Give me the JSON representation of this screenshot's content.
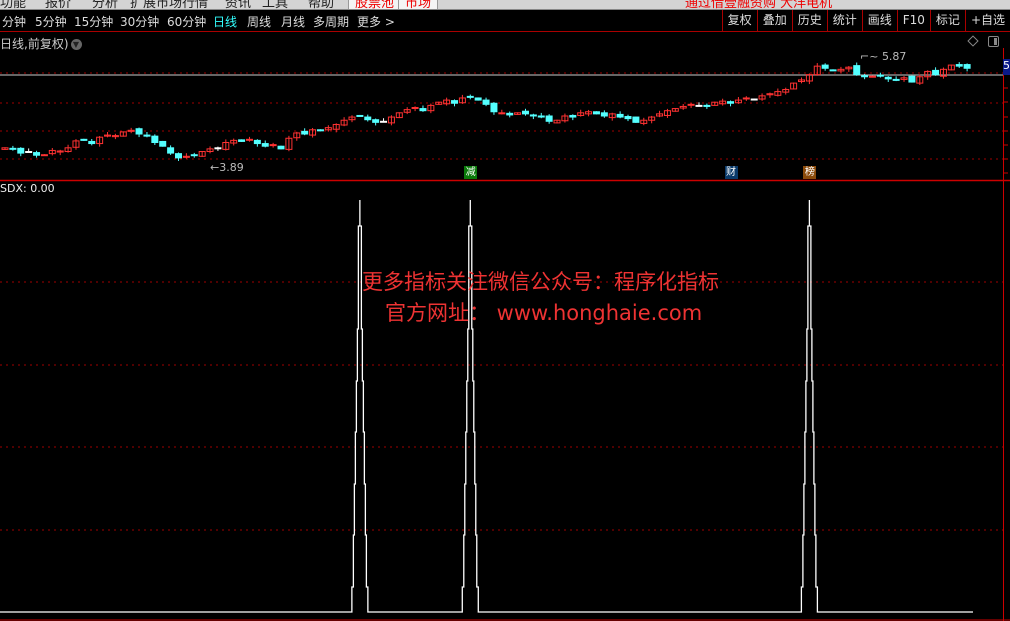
{
  "menu": {
    "items": [
      "功能",
      "报价",
      "分析",
      "扩展市场行情",
      "资讯",
      "工具",
      "帮助"
    ],
    "red_items": [
      "股票池",
      "市场"
    ],
    "ticker": "通过借壹融资购 大洋电机"
  },
  "periods": {
    "items": [
      "分钟",
      "5分钟",
      "15分钟",
      "30分钟",
      "60分钟",
      "日线",
      "周线",
      "月线",
      "多周期",
      "更多 >"
    ],
    "active": "日线"
  },
  "toolbar": {
    "items": [
      "复权",
      "叠加",
      "历史",
      "统计",
      "画线",
      "F10",
      "标记",
      "+自选"
    ]
  },
  "chart_header": {
    "label": "日线,前复权)",
    "dropdown_icon": "chevron-down-icon"
  },
  "icons": {
    "diamond": "diamond-icon",
    "window": "window-toggle-icon"
  },
  "colors": {
    "up": "#ff3232",
    "down": "#54ffff",
    "doji": "#ffffff",
    "grid": "#a00000",
    "indicator": "#ffffff",
    "watermark": "#ee3333"
  },
  "chart_data": {
    "type": "candlestick",
    "price_high_label": "5.87",
    "price_low_label": "3.89",
    "axis_label": "5",
    "closes": [
      4.12,
      4.1,
      4.02,
      4.05,
      3.98,
      3.99,
      4.07,
      4.06,
      4.12,
      4.25,
      4.26,
      4.2,
      4.32,
      4.36,
      4.35,
      4.42,
      4.45,
      4.38,
      4.34,
      4.22,
      4.15,
      4.02,
      3.93,
      3.96,
      3.98,
      4.05,
      4.1,
      4.12,
      4.22,
      4.26,
      4.24,
      4.28,
      4.2,
      4.15,
      4.18,
      4.1,
      4.3,
      4.4,
      4.38,
      4.46,
      4.44,
      4.5,
      4.56,
      4.64,
      4.7,
      4.72,
      4.65,
      4.6,
      4.62,
      4.7,
      4.78,
      4.84,
      4.88,
      4.82,
      4.92,
      4.98,
      5.02,
      4.96,
      5.06,
      5.08,
      5.02,
      4.94,
      4.8,
      4.78,
      4.74,
      4.78,
      4.76,
      4.72,
      4.7,
      4.62,
      4.64,
      4.72,
      4.7,
      4.78,
      4.8,
      4.76,
      4.72,
      4.76,
      4.7,
      4.67,
      4.6,
      4.64,
      4.7,
      4.76,
      4.82,
      4.86,
      4.9,
      4.94,
      4.92,
      4.9,
      4.98,
      5.0,
      4.96,
      5.02,
      5.06,
      5.04,
      5.1,
      5.14,
      5.18,
      5.22,
      5.34,
      5.4,
      5.5,
      5.66,
      5.62,
      5.58,
      5.6,
      5.64,
      5.5,
      5.46,
      5.47,
      5.48,
      5.42,
      5.4,
      5.44,
      5.36,
      5.46,
      5.56,
      5.5,
      5.6,
      5.68,
      5.66,
      5.62
    ],
    "event_tags": [
      {
        "text": "减",
        "index": 59,
        "color": "#0a7a0a"
      },
      {
        "text": "财",
        "index": 92,
        "color": "#0a3a6a"
      },
      {
        "text": "榜",
        "index": 102,
        "color": "#8a4a0a"
      }
    ]
  },
  "indicator": {
    "label": "SDX: 0.00",
    "spike_indices": [
      45,
      59,
      102
    ]
  },
  "watermark": {
    "line1": "更多指标关注微信公众号：程序化指标",
    "line2": "官方网址： www.honghaie.com"
  }
}
